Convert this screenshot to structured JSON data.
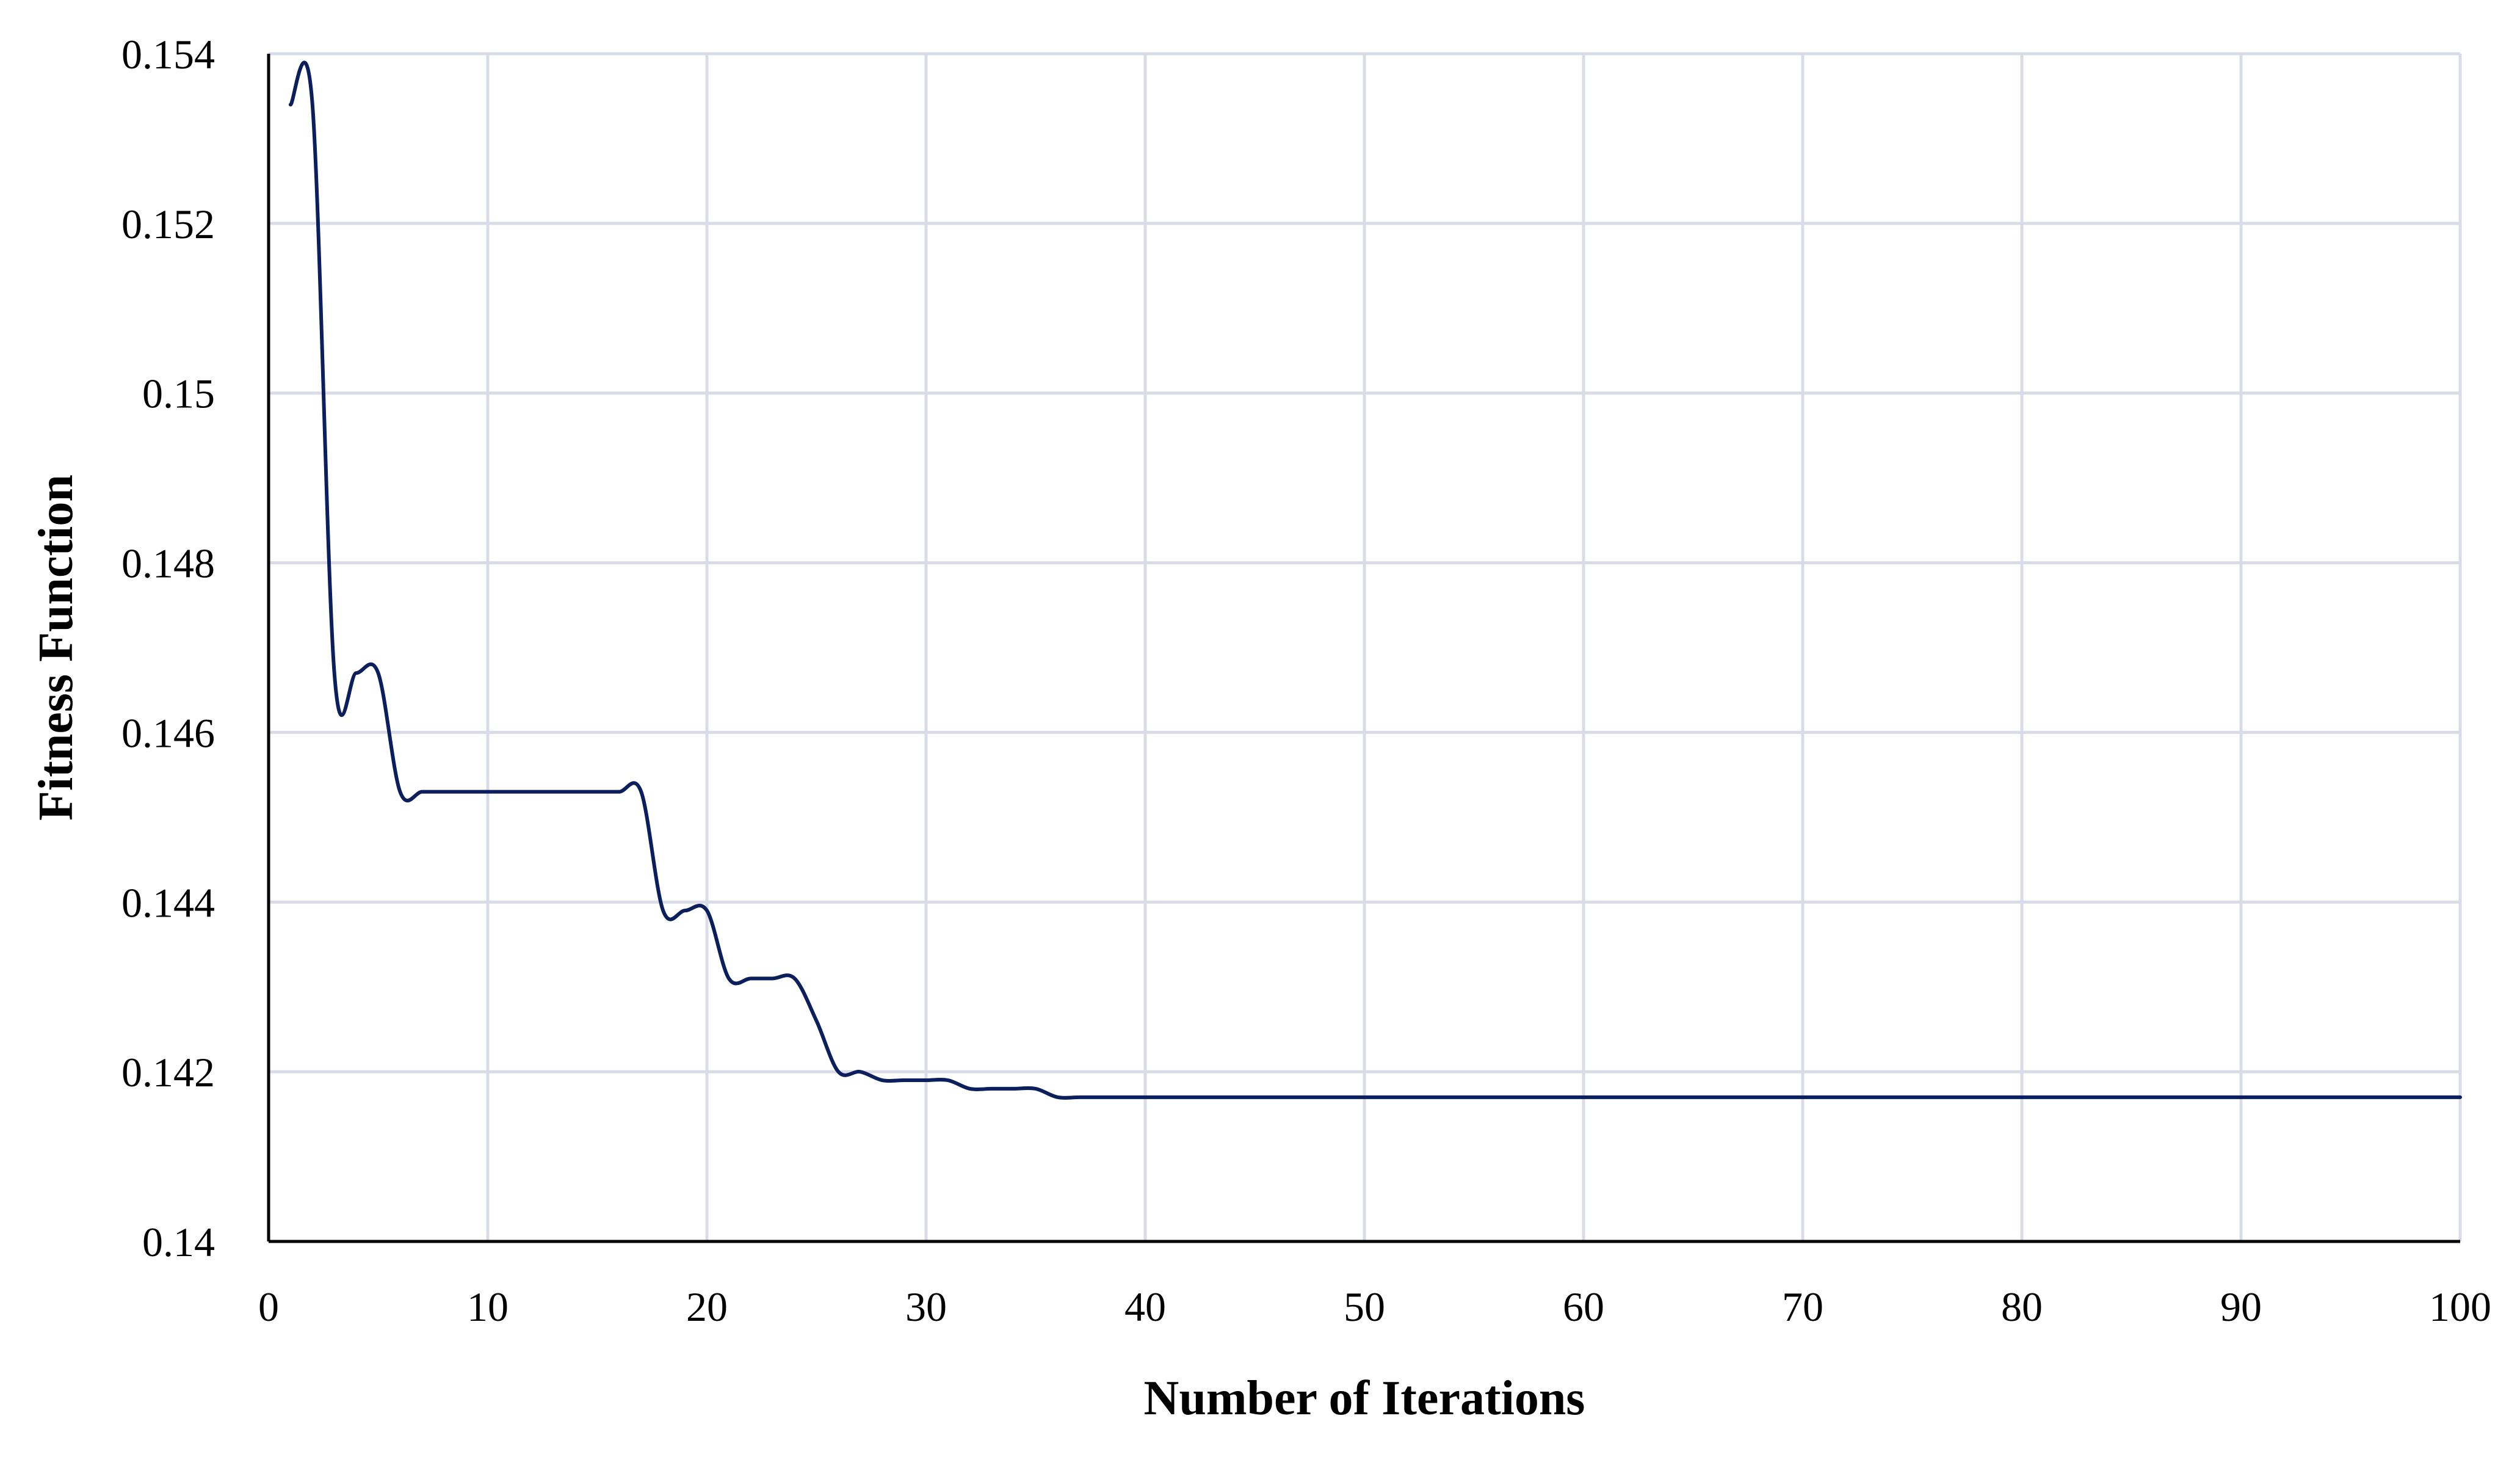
{
  "chart_data": {
    "type": "line",
    "xlabel": "Number of Iterations",
    "ylabel": "Fitness Function",
    "xlim": [
      0,
      100
    ],
    "ylim": [
      0.14,
      0.154
    ],
    "xticks": [
      0,
      10,
      20,
      30,
      40,
      50,
      60,
      70,
      80,
      90,
      100
    ],
    "yticks": [
      "0.14",
      "0.142",
      "0.144",
      "0.146",
      "0.148",
      "0.15",
      "0.152",
      "0.154"
    ],
    "grid": true,
    "legend": "none",
    "line_color": "#0b1f5c",
    "series": [
      {
        "x": [
          1,
          2,
          3,
          4,
          5,
          6,
          7,
          8,
          9,
          10,
          11,
          12,
          13,
          14,
          15,
          16,
          17,
          18,
          19,
          20,
          21,
          22,
          23,
          24,
          25,
          26,
          27,
          28,
          29,
          30,
          31,
          32,
          33,
          34,
          35,
          36,
          37,
          38,
          39,
          40,
          41,
          42,
          43,
          44,
          45,
          46,
          47,
          48,
          49,
          50,
          51,
          52,
          53,
          54,
          55,
          56,
          57,
          58,
          59,
          60,
          61,
          62,
          63,
          64,
          65,
          66,
          67,
          68,
          69,
          70,
          71,
          72,
          73,
          74,
          75,
          76,
          77,
          78,
          79,
          80,
          81,
          82,
          83,
          84,
          85,
          86,
          87,
          88,
          89,
          90,
          91,
          92,
          93,
          94,
          95,
          96,
          97,
          98,
          99,
          100
        ],
        "y": [
          0.1534,
          0.1534,
          0.1467,
          0.1467,
          0.1467,
          0.1453,
          0.1453,
          0.1453,
          0.1453,
          0.1453,
          0.1453,
          0.1453,
          0.1453,
          0.1453,
          0.1453,
          0.1453,
          0.1453,
          0.1439,
          0.1439,
          0.1439,
          0.1431,
          0.1431,
          0.1431,
          0.1431,
          0.1426,
          0.142,
          0.142,
          0.1419,
          0.1419,
          0.1419,
          0.1419,
          0.1418,
          0.1418,
          0.1418,
          0.1418,
          0.1417,
          0.1417,
          0.1417,
          0.1417,
          0.1417,
          0.1417,
          0.1417,
          0.1417,
          0.1417,
          0.1417,
          0.1417,
          0.1417,
          0.1417,
          0.1417,
          0.1417,
          0.1417,
          0.1417,
          0.1417,
          0.1417,
          0.1417,
          0.1417,
          0.1417,
          0.1417,
          0.1417,
          0.1417,
          0.1417,
          0.1417,
          0.1417,
          0.1417,
          0.1417,
          0.1417,
          0.1417,
          0.1417,
          0.1417,
          0.1417,
          0.1417,
          0.1417,
          0.1417,
          0.1417,
          0.1417,
          0.1417,
          0.1417,
          0.1417,
          0.1417,
          0.1417,
          0.1417,
          0.1417,
          0.1417,
          0.1417,
          0.1417,
          0.1417,
          0.1417,
          0.1417,
          0.1417,
          0.1417,
          0.1417,
          0.1417,
          0.1417,
          0.1417,
          0.1417,
          0.1417,
          0.1417,
          0.1417,
          0.1417,
          0.1417
        ]
      }
    ]
  }
}
